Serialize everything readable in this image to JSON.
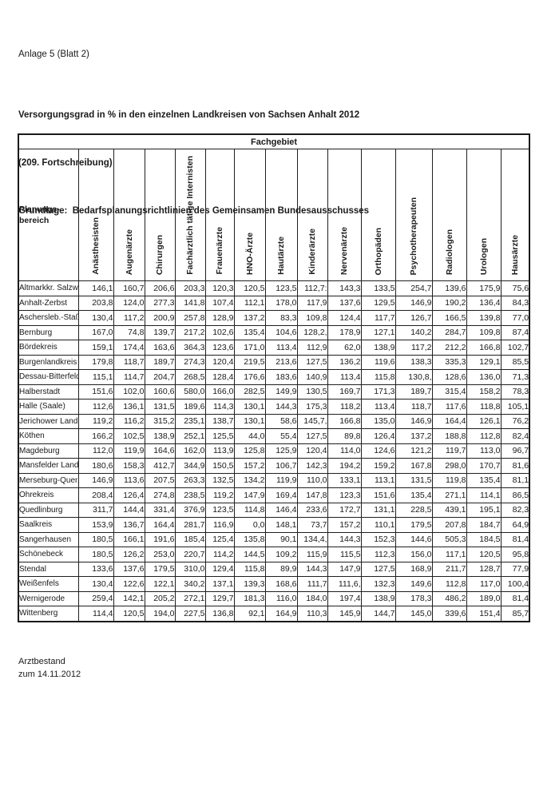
{
  "page": {
    "annotation": "Anlage 5 (Blatt 2)",
    "title_lines": [
      "Versorgungsgrad in % in den einzelnen Landkreisen von Sachsen Anhalt 2012",
      "(209. Fortschreibung)",
      "Grundlage:  Bedarfsplanungsrichtlinien des Gemeinsamen Bundesausschusses"
    ],
    "footer_lines": [
      "Arztbestand",
      "zum 14.11.2012"
    ]
  },
  "table": {
    "group_header": "Fachgebiet",
    "row_header": {
      "line1": "Planungs-",
      "line2": "bereich"
    },
    "columns": [
      "Anästhesisten",
      "Augenärzte",
      "Chirurgen",
      "Fachärztlich tätige Internisten",
      "Frauenärzte",
      "HNO-Ärzte",
      "Hautärzte",
      "Kinderärzte",
      "Nervenärzte",
      "Orthopäden",
      "Psychotherapeuten",
      "Radiologen",
      "Urologen",
      "Hausärzte"
    ],
    "rows": [
      {
        "name": "Altmarkkr. Salzw.",
        "values": [
          "146,1",
          "160,7",
          "206,6",
          "203,3",
          "120,3",
          "120,5",
          "123,5",
          "112,7:",
          "143,3",
          "133,5",
          "254,7",
          "139,6",
          "175,9",
          "75,6"
        ]
      },
      {
        "name": "Anhalt-Zerbst",
        "values": [
          "203,8",
          "124,0",
          "277,3",
          "141,8",
          "107,4",
          "112,1",
          "178,0",
          "117,9",
          "137,6",
          "129,5",
          "146,9",
          "190,2",
          "136,4",
          "84,3"
        ]
      },
      {
        "name": "Aschersleb.-Staßf.",
        "values": [
          "130,4",
          "117,2",
          "200,9",
          "257,8",
          "128,9",
          "137,2",
          "83,3",
          "109,8",
          "124,4",
          "117,7",
          "126,7",
          "166,5",
          "139,8",
          "77,0"
        ]
      },
      {
        "name": "Bernburg",
        "values": [
          "167,0",
          "74,8",
          "139,7",
          "217,2",
          "102,6",
          "135,4",
          "104,6",
          "128,2,",
          "178,9",
          "127,1",
          "140,2",
          "284,7",
          "109,8",
          "87,4"
        ]
      },
      {
        "name": "Bördekreis",
        "values": [
          "159,1",
          "174,4",
          "163,6",
          "364,3",
          "123,6",
          "171,0",
          "113,4",
          "112,9",
          "62,0",
          "138,9",
          "117,2",
          "212,2",
          "166,8",
          "102,7"
        ]
      },
      {
        "name": "Burgenlandkreis",
        "values": [
          "179,8",
          "118,7",
          "189,7",
          "274,3",
          "120,4",
          "219,5",
          "213,6",
          "127,5",
          "136,2",
          "119,6",
          "138,3",
          "335,3",
          "129,1",
          "85,5"
        ]
      },
      {
        "name": "Dessau-Bitterfeld",
        "values": [
          "115,1",
          "114,7",
          "204,7",
          "268,5",
          "128,4",
          "176,6",
          "183,6",
          "140,9",
          "113,4",
          "115,8",
          "130,8,",
          "128,6",
          "136,0",
          "71,3"
        ]
      },
      {
        "name": "Halberstadt",
        "values": [
          "151,6",
          "102,0",
          "160,6",
          "580,0",
          "166,0",
          "282,5",
          "149,9",
          "130,5",
          "169,7",
          "171,3",
          "189,7",
          "315,4",
          "158,2",
          "78,3"
        ]
      },
      {
        "name": "Halle (Saale)",
        "values": [
          "112,6",
          "136,1",
          "131,5",
          "189,6",
          "114,3",
          "130,1",
          "144,3",
          "175,3",
          "118,2",
          "113,4",
          "118,7",
          "117,6",
          "118,8",
          "105,1"
        ]
      },
      {
        "name": "Jerichower Land",
        "values": [
          "119,2",
          "116,2",
          "315,2",
          "235,1",
          "138,7",
          "130,1",
          "58,6",
          "145,7,",
          "166,8",
          "135,0",
          "146,9",
          "164,4",
          "126,1",
          "76,2"
        ]
      },
      {
        "name": "Köthen",
        "values": [
          "166,2",
          "102,5",
          "138,9",
          "252,1",
          "125,5",
          "44,0",
          "55,4",
          "127,5",
          "89,8",
          "126,4",
          "137,2",
          "188,8",
          "112,8",
          "82,4"
        ]
      },
      {
        "name": "Magdeburg",
        "values": [
          "112,0",
          "119,9",
          "164,6",
          "162,0",
          "113,9",
          "125,8",
          "125,9",
          "120,4",
          "114,0",
          "124,6",
          "121,2",
          "119,7",
          "113,0",
          "96,7"
        ]
      },
      {
        "name": "Mansfelder Land",
        "values": [
          "180,6",
          "158,3",
          "412,7",
          "344,9",
          "150,5",
          "157,2",
          "106,7",
          "142,3",
          "194,2",
          "159,2",
          "167,8",
          "298,0",
          "170,7",
          "81,6"
        ]
      },
      {
        "name": "Merseburg-Quer.",
        "values": [
          "146,9",
          "113,6",
          "207,5",
          "263,3",
          "132,5",
          "134,2",
          "119,9",
          "110,0",
          "133,1",
          "113,1",
          "131,5",
          "119,8",
          "135,4",
          "81,1"
        ]
      },
      {
        "name": "Ohrekreis",
        "values": [
          "208,4",
          "126,4",
          "274,8",
          "238,5",
          "119,2",
          "147,9",
          "169,4",
          "147,8",
          "123,3",
          "151,6",
          "135,4",
          "271,1",
          "114,1",
          "86,5"
        ]
      },
      {
        "name": "Quedlinburg",
        "values": [
          "311,7",
          "144,4",
          "331,4",
          "376,9",
          "123,5",
          "114,8",
          "146,4",
          "233,6",
          "172,7",
          "131,1",
          "228,5",
          "439,1",
          "195,1",
          "82,3"
        ]
      },
      {
        "name": "Saalkreis",
        "values": [
          "153,9",
          "136,7",
          "164,4",
          "281,7",
          "116,9",
          "0,0",
          "148,1",
          "73,7",
          "157,2",
          "110,1",
          "179,5",
          "207,8",
          "184,7",
          "64,9"
        ]
      },
      {
        "name": "Sangerhausen",
        "values": [
          "180,5",
          "166,1",
          "191,6",
          "185,4",
          "125,4",
          "135,8",
          "90,1",
          "134,4,",
          "144,3",
          "152,3",
          "144,6",
          "505,3",
          "184,5",
          "81,4"
        ]
      },
      {
        "name": "Schönebeck",
        "values": [
          "180,5",
          "126,2",
          "253,0",
          "220,7",
          "114,2",
          "144,5",
          "109,2",
          "115,9",
          "115,5",
          "112,3",
          "156,0",
          "117,1",
          "120,5",
          "95,8"
        ]
      },
      {
        "name": "Stendal",
        "values": [
          "133,6",
          "137,6",
          "179,5",
          "310,0",
          "129,4",
          "115,8",
          "89,9",
          "144,3",
          "147,9",
          "127,5",
          "168,9",
          "211,7",
          "128,7",
          "77,9"
        ]
      },
      {
        "name": "Weißenfels",
        "values": [
          "130,4",
          "122,6",
          "122,1",
          "340,2",
          "137,1",
          "139,3",
          "168,6",
          "111,7",
          "111,6,",
          "132,3",
          "149,6",
          "112,8",
          "117,0",
          "100,4"
        ]
      },
      {
        "name": "Wernigerode",
        "values": [
          "259,4",
          "142,1",
          "205,2",
          "272,1",
          "129,7",
          "181,3",
          "116,0",
          "184,0",
          "197,4",
          "138,9",
          "178,3",
          "486,2",
          "189,0",
          "81,4"
        ]
      },
      {
        "name": "Wittenberg",
        "values": [
          "114,4",
          "120,5",
          "194,0",
          "227,5",
          "136,8",
          "92,1",
          "164,9",
          "110,3",
          "145,9",
          "144,7",
          "145,0",
          "339,6",
          "151,4",
          "85,7"
        ]
      }
    ]
  },
  "colors": {
    "text": "#1a1a1a",
    "border": "#1f1f1f",
    "background": "#ffffff"
  }
}
